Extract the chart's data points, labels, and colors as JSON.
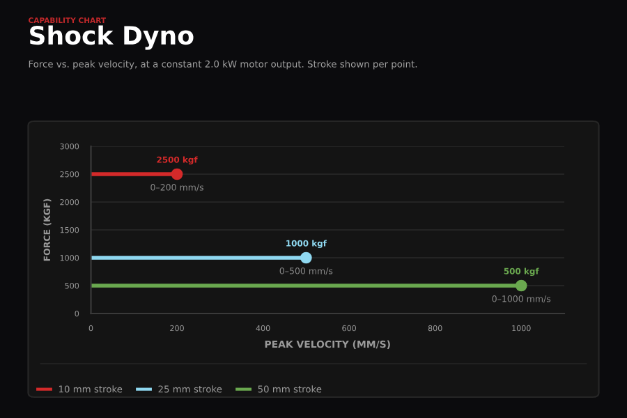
{
  "chart_data": {
    "type": "line",
    "title": "Shock Dyno",
    "subtitle": "Force vs. peak velocity, at a constant 2.0 kW motor output. Stroke shown per point.",
    "xlabel": "PEAK VELOCITY (MM/S)",
    "ylabel": "FORCE (KGF)",
    "series": [
      {
        "name": "10 mm stroke",
        "color": "#d42a2a",
        "x": [
          0,
          200
        ],
        "values": [
          2500,
          2500
        ]
      },
      {
        "name": "25 mm stroke",
        "color": "#8fd8f0",
        "x": [
          0,
          500
        ],
        "values": [
          1000,
          1000
        ]
      },
      {
        "name": "50 mm stroke",
        "color": "#6aa84f",
        "x": [
          0,
          1000
        ],
        "values": [
          500,
          500
        ]
      }
    ],
    "xlim": [
      0,
      1100
    ],
    "xticks": [
      0,
      200,
      400,
      600,
      800,
      1000
    ],
    "ylim": [
      0,
      3000
    ],
    "yticks": [
      0,
      500,
      1000,
      1500,
      2000,
      2500,
      3000
    ],
    "grid": "y",
    "legend": "bottom",
    "marker": "circle",
    "line_style": "solid",
    "annotations": [
      "CAPABILITY CHART",
      {
        "text": "2500 kgf",
        "x": 200,
        "y": 2500
      },
      {
        "text": "0–200 mm/s",
        "x": 200,
        "y": 2500
      },
      {
        "text": "1000 kgf",
        "x": 500,
        "y": 1000
      },
      {
        "text": "0–500 mm/s",
        "x": 500,
        "y": 1000
      },
      {
        "text": "500 kgf",
        "x": 1000,
        "y": 500
      },
      {
        "text": "0–1000 mm/s",
        "x": 1000,
        "y": 500
      }
    ]
  }
}
